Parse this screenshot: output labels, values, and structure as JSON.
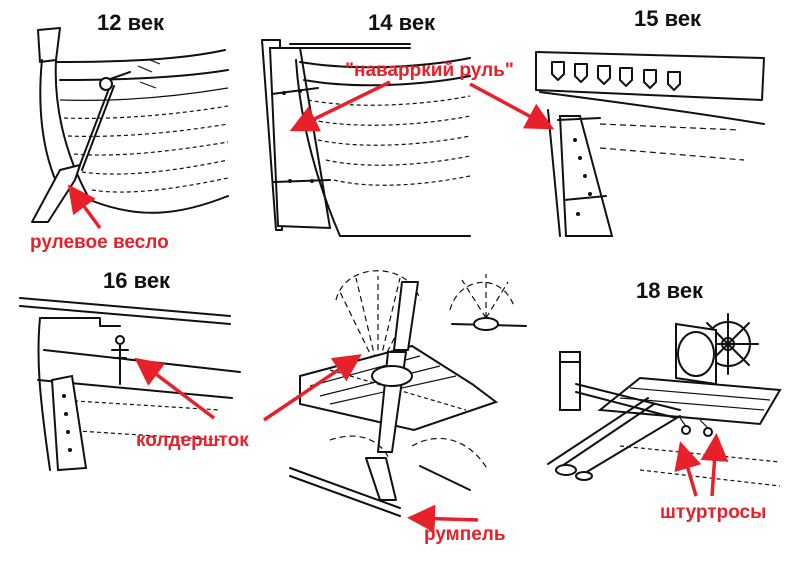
{
  "panels": {
    "p12": {
      "title": "12 век"
    },
    "p14": {
      "title": "14 век"
    },
    "p15": {
      "title": "15 век"
    },
    "p16": {
      "title": "16 век"
    },
    "p18": {
      "title": "18 век"
    }
  },
  "callouts": {
    "steering_oar": "рулевое весло",
    "navarre_rudder": "\"наварркий руль\"",
    "whipstaff": "колдершток",
    "tiller": "румпель",
    "tiller_ropes": "штуртросы"
  },
  "colors": {
    "accent": "#e8202a",
    "ink": "#111111"
  }
}
